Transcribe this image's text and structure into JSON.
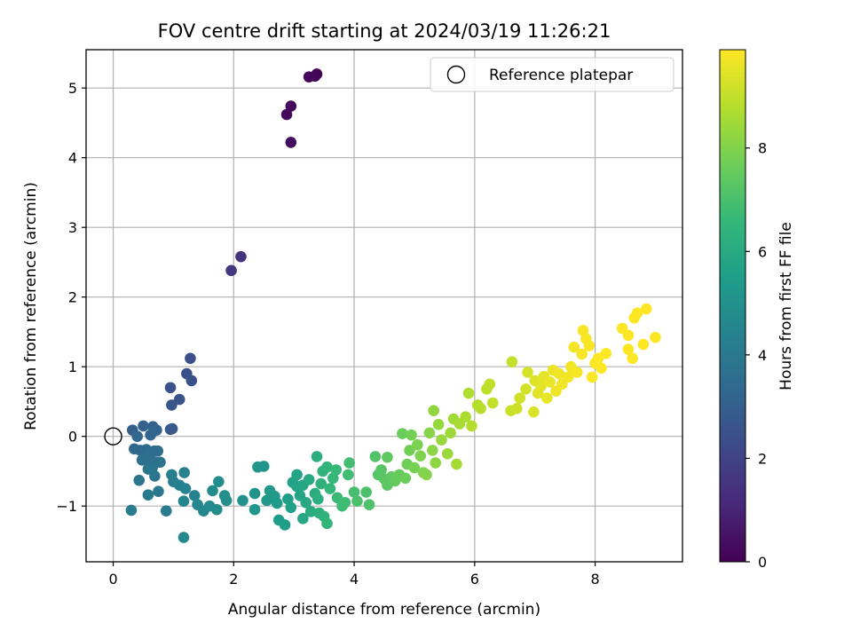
{
  "chart_data": {
    "type": "scatter",
    "title": "FOV centre drift starting at 2024/03/19 11:26:21",
    "xlabel": "Angular distance from reference (arcmin)",
    "ylabel": "Rotation from reference (arcmin)",
    "xlim": [
      -0.45,
      9.45
    ],
    "ylim": [
      -1.8,
      5.55
    ],
    "xticks": [
      0,
      2,
      4,
      6,
      8
    ],
    "yticks": [
      -1,
      0,
      1,
      2,
      3,
      4,
      5
    ],
    "xtick_labels": [
      "0",
      "2",
      "4",
      "6",
      "8"
    ],
    "ytick_labels": [
      "−1",
      "0",
      "1",
      "2",
      "3",
      "4",
      "5"
    ],
    "grid": true,
    "legend": {
      "position": "top-right",
      "entries": [
        "Reference platepar"
      ]
    },
    "reference_point": {
      "x": 0,
      "y": 0
    },
    "colorbar": {
      "label": "Hours from first FF file",
      "range": [
        0,
        9.9
      ],
      "ticks": [
        0,
        2,
        4,
        6,
        8
      ],
      "tick_labels": [
        "0",
        "2",
        "4",
        "6",
        "8"
      ],
      "colormap": "viridis"
    },
    "series": [
      {
        "points": [
          {
            "x": 3.38,
            "y": 5.2,
            "c": 0.1
          },
          {
            "x": 3.35,
            "y": 5.17,
            "c": 0.15
          },
          {
            "x": 3.25,
            "y": 5.16,
            "c": 0.2
          },
          {
            "x": 2.95,
            "y": 4.74,
            "c": 0.25
          },
          {
            "x": 2.88,
            "y": 4.62,
            "c": 0.3
          },
          {
            "x": 2.95,
            "y": 4.22,
            "c": 0.35
          },
          {
            "x": 2.12,
            "y": 2.58,
            "c": 1.45
          },
          {
            "x": 1.96,
            "y": 2.38,
            "c": 1.55
          },
          {
            "x": 1.28,
            "y": 1.12,
            "c": 2.4
          },
          {
            "x": 1.22,
            "y": 0.9,
            "c": 2.45
          },
          {
            "x": 1.3,
            "y": 0.8,
            "c": 2.5
          },
          {
            "x": 0.95,
            "y": 0.7,
            "c": 2.55
          },
          {
            "x": 1.1,
            "y": 0.53,
            "c": 2.6
          },
          {
            "x": 0.97,
            "y": 0.45,
            "c": 2.65
          },
          {
            "x": 0.98,
            "y": 0.11,
            "c": 2.7
          },
          {
            "x": 0.95,
            "y": 0.1,
            "c": 2.75
          },
          {
            "x": 0.32,
            "y": 0.09,
            "c": 3.0
          },
          {
            "x": 0.5,
            "y": 0.15,
            "c": 3.05
          },
          {
            "x": 0.66,
            "y": 0.14,
            "c": 3.1
          },
          {
            "x": 0.72,
            "y": 0.09,
            "c": 3.15
          },
          {
            "x": 0.62,
            "y": 0.02,
            "c": 3.2
          },
          {
            "x": 0.4,
            "y": 0.0,
            "c": 3.25
          },
          {
            "x": 0.35,
            "y": -0.18,
            "c": 3.3
          },
          {
            "x": 0.45,
            "y": -0.2,
            "c": 3.35
          },
          {
            "x": 0.55,
            "y": -0.19,
            "c": 3.4
          },
          {
            "x": 0.68,
            "y": -0.21,
            "c": 3.45
          },
          {
            "x": 0.74,
            "y": -0.21,
            "c": 3.5
          },
          {
            "x": 0.58,
            "y": -0.28,
            "c": 3.55
          },
          {
            "x": 0.48,
            "y": -0.34,
            "c": 3.6
          },
          {
            "x": 0.62,
            "y": -0.35,
            "c": 3.65
          },
          {
            "x": 0.7,
            "y": -0.37,
            "c": 3.7
          },
          {
            "x": 0.78,
            "y": -0.37,
            "c": 3.75
          },
          {
            "x": 0.65,
            "y": -0.45,
            "c": 3.8
          },
          {
            "x": 0.58,
            "y": -0.47,
            "c": 3.85
          },
          {
            "x": 0.69,
            "y": -0.57,
            "c": 3.9
          },
          {
            "x": 0.43,
            "y": -0.63,
            "c": 3.95
          },
          {
            "x": 0.75,
            "y": -0.79,
            "c": 4.0
          },
          {
            "x": 0.58,
            "y": -0.84,
            "c": 4.05
          },
          {
            "x": 0.3,
            "y": -1.06,
            "c": 4.1
          },
          {
            "x": 0.88,
            "y": -1.07,
            "c": 4.15
          },
          {
            "x": 0.97,
            "y": -0.55,
            "c": 4.2
          },
          {
            "x": 1.0,
            "y": -0.65,
            "c": 4.25
          },
          {
            "x": 1.1,
            "y": -0.7,
            "c": 4.3
          },
          {
            "x": 1.18,
            "y": -0.52,
            "c": 4.35
          },
          {
            "x": 1.2,
            "y": -0.75,
            "c": 4.4
          },
          {
            "x": 1.35,
            "y": -0.85,
            "c": 4.45
          },
          {
            "x": 1.17,
            "y": -0.93,
            "c": 4.5
          },
          {
            "x": 1.4,
            "y": -0.98,
            "c": 4.55
          },
          {
            "x": 1.5,
            "y": -1.07,
            "c": 4.6
          },
          {
            "x": 1.17,
            "y": -1.45,
            "c": 4.65
          },
          {
            "x": 1.6,
            "y": -1.0,
            "c": 4.7
          },
          {
            "x": 1.65,
            "y": -0.78,
            "c": 4.75
          },
          {
            "x": 1.75,
            "y": -0.65,
            "c": 4.8
          },
          {
            "x": 1.72,
            "y": -1.05,
            "c": 4.85
          },
          {
            "x": 1.85,
            "y": -0.85,
            "c": 4.9
          },
          {
            "x": 1.88,
            "y": -0.92,
            "c": 4.95
          },
          {
            "x": 2.15,
            "y": -0.92,
            "c": 5.0
          },
          {
            "x": 2.35,
            "y": -0.82,
            "c": 5.05
          },
          {
            "x": 2.4,
            "y": -0.44,
            "c": 5.1
          },
          {
            "x": 2.5,
            "y": -0.43,
            "c": 5.15
          },
          {
            "x": 2.35,
            "y": -1.05,
            "c": 5.2
          },
          {
            "x": 2.55,
            "y": -0.92,
            "c": 5.25
          },
          {
            "x": 2.6,
            "y": -0.78,
            "c": 5.3
          },
          {
            "x": 2.68,
            "y": -0.86,
            "c": 5.35
          },
          {
            "x": 2.72,
            "y": -0.96,
            "c": 5.4
          },
          {
            "x": 2.75,
            "y": -1.2,
            "c": 5.45
          },
          {
            "x": 2.85,
            "y": -1.27,
            "c": 5.5
          },
          {
            "x": 2.9,
            "y": -0.9,
            "c": 5.55
          },
          {
            "x": 2.95,
            "y": -1.02,
            "c": 5.6
          },
          {
            "x": 2.98,
            "y": -0.66,
            "c": 5.65
          },
          {
            "x": 3.05,
            "y": -0.55,
            "c": 5.7
          },
          {
            "x": 3.05,
            "y": -0.72,
            "c": 5.75
          },
          {
            "x": 3.1,
            "y": -0.85,
            "c": 5.8
          },
          {
            "x": 3.15,
            "y": -0.7,
            "c": 5.85
          },
          {
            "x": 3.15,
            "y": -1.18,
            "c": 5.9
          },
          {
            "x": 3.2,
            "y": -0.95,
            "c": 5.95
          },
          {
            "x": 3.25,
            "y": -0.62,
            "c": 6.0
          },
          {
            "x": 3.28,
            "y": -1.08,
            "c": 6.05
          },
          {
            "x": 3.35,
            "y": -0.82,
            "c": 6.1
          },
          {
            "x": 3.38,
            "y": -0.29,
            "c": 6.15
          },
          {
            "x": 3.4,
            "y": -0.9,
            "c": 6.2
          },
          {
            "x": 3.42,
            "y": -1.1,
            "c": 6.25
          },
          {
            "x": 3.45,
            "y": -0.68,
            "c": 6.3
          },
          {
            "x": 3.48,
            "y": -0.5,
            "c": 6.35
          },
          {
            "x": 3.5,
            "y": -1.15,
            "c": 6.4
          },
          {
            "x": 3.55,
            "y": -0.44,
            "c": 6.45
          },
          {
            "x": 3.55,
            "y": -1.25,
            "c": 6.5
          },
          {
            "x": 3.6,
            "y": -0.75,
            "c": 6.55
          },
          {
            "x": 3.65,
            "y": -0.6,
            "c": 6.6
          },
          {
            "x": 3.7,
            "y": -0.48,
            "c": 6.65
          },
          {
            "x": 3.72,
            "y": -0.88,
            "c": 6.7
          },
          {
            "x": 3.8,
            "y": -1.0,
            "c": 6.75
          },
          {
            "x": 3.85,
            "y": -0.95,
            "c": 6.8
          },
          {
            "x": 3.9,
            "y": -0.55,
            "c": 6.85
          },
          {
            "x": 3.92,
            "y": -0.38,
            "c": 6.9
          },
          {
            "x": 4.0,
            "y": -0.8,
            "c": 6.95
          },
          {
            "x": 4.05,
            "y": -0.93,
            "c": 7.0
          },
          {
            "x": 4.2,
            "y": -0.8,
            "c": 7.05
          },
          {
            "x": 4.25,
            "y": -0.98,
            "c": 7.1
          },
          {
            "x": 4.35,
            "y": -0.29,
            "c": 7.15
          },
          {
            "x": 4.4,
            "y": -0.55,
            "c": 7.2
          },
          {
            "x": 4.45,
            "y": -0.48,
            "c": 7.25
          },
          {
            "x": 4.5,
            "y": -0.61,
            "c": 7.3
          },
          {
            "x": 4.55,
            "y": -0.7,
            "c": 7.35
          },
          {
            "x": 4.55,
            "y": -0.3,
            "c": 7.4
          },
          {
            "x": 4.62,
            "y": -0.58,
            "c": 7.45
          },
          {
            "x": 4.68,
            "y": -0.64,
            "c": 7.5
          },
          {
            "x": 4.75,
            "y": -0.55,
            "c": 7.55
          },
          {
            "x": 4.8,
            "y": 0.04,
            "c": 7.6
          },
          {
            "x": 4.85,
            "y": -0.6,
            "c": 7.65
          },
          {
            "x": 4.88,
            "y": -0.4,
            "c": 7.7
          },
          {
            "x": 4.92,
            "y": -0.2,
            "c": 7.75
          },
          {
            "x": 4.95,
            "y": 0.02,
            "c": 7.8
          },
          {
            "x": 5.0,
            "y": -0.45,
            "c": 7.85
          },
          {
            "x": 5.05,
            "y": -0.12,
            "c": 7.9
          },
          {
            "x": 5.1,
            "y": -0.28,
            "c": 7.95
          },
          {
            "x": 5.15,
            "y": -0.52,
            "c": 8.0
          },
          {
            "x": 5.2,
            "y": -0.55,
            "c": 8.05
          },
          {
            "x": 5.25,
            "y": 0.05,
            "c": 8.1
          },
          {
            "x": 5.3,
            "y": -0.2,
            "c": 8.15
          },
          {
            "x": 5.35,
            "y": -0.38,
            "c": 8.2
          },
          {
            "x": 5.32,
            "y": 0.37,
            "c": 8.25
          },
          {
            "x": 5.4,
            "y": 0.17,
            "c": 8.3
          },
          {
            "x": 5.45,
            "y": -0.05,
            "c": 8.35
          },
          {
            "x": 5.55,
            "y": -0.25,
            "c": 8.4
          },
          {
            "x": 5.6,
            "y": 0.05,
            "c": 8.45
          },
          {
            "x": 5.65,
            "y": 0.25,
            "c": 8.5
          },
          {
            "x": 5.7,
            "y": -0.4,
            "c": 8.55
          },
          {
            "x": 5.75,
            "y": 0.18,
            "c": 8.6
          },
          {
            "x": 5.85,
            "y": 0.28,
            "c": 8.65
          },
          {
            "x": 5.9,
            "y": 0.62,
            "c": 8.7
          },
          {
            "x": 5.95,
            "y": 0.15,
            "c": 8.75
          },
          {
            "x": 6.05,
            "y": 0.45,
            "c": 8.8
          },
          {
            "x": 6.1,
            "y": 0.4,
            "c": 8.85
          },
          {
            "x": 6.2,
            "y": 0.68,
            "c": 8.9
          },
          {
            "x": 6.25,
            "y": 0.75,
            "c": 8.95
          },
          {
            "x": 6.3,
            "y": 0.48,
            "c": 9.0
          },
          {
            "x": 6.62,
            "y": 1.07,
            "c": 9.05
          },
          {
            "x": 6.6,
            "y": 0.37,
            "c": 9.1
          },
          {
            "x": 6.7,
            "y": 0.4,
            "c": 9.15
          },
          {
            "x": 6.75,
            "y": 0.55,
            "c": 9.2
          },
          {
            "x": 6.85,
            "y": 0.68,
            "c": 9.25
          },
          {
            "x": 6.88,
            "y": 0.92,
            "c": 9.3
          },
          {
            "x": 6.98,
            "y": 0.35,
            "c": 9.35
          },
          {
            "x": 7.0,
            "y": 0.8,
            "c": 9.4
          },
          {
            "x": 7.05,
            "y": 0.62,
            "c": 9.45
          },
          {
            "x": 7.1,
            "y": 0.72,
            "c": 9.5
          },
          {
            "x": 7.15,
            "y": 0.86,
            "c": 9.55
          },
          {
            "x": 7.2,
            "y": 0.55,
            "c": 9.6
          },
          {
            "x": 7.25,
            "y": 0.78,
            "c": 9.62
          },
          {
            "x": 7.3,
            "y": 0.95,
            "c": 9.64
          },
          {
            "x": 7.35,
            "y": 0.65,
            "c": 9.66
          },
          {
            "x": 7.4,
            "y": 0.9,
            "c": 9.68
          },
          {
            "x": 7.45,
            "y": 0.75,
            "c": 9.7
          },
          {
            "x": 7.55,
            "y": 0.85,
            "c": 9.72
          },
          {
            "x": 7.6,
            "y": 1.0,
            "c": 9.74
          },
          {
            "x": 7.65,
            "y": 1.28,
            "c": 9.76
          },
          {
            "x": 7.7,
            "y": 0.92,
            "c": 9.78
          },
          {
            "x": 7.78,
            "y": 1.18,
            "c": 9.8
          },
          {
            "x": 7.8,
            "y": 1.52,
            "c": 9.82
          },
          {
            "x": 7.85,
            "y": 1.4,
            "c": 9.83
          },
          {
            "x": 7.9,
            "y": 1.3,
            "c": 9.84
          },
          {
            "x": 7.95,
            "y": 0.85,
            "c": 9.85
          },
          {
            "x": 8.0,
            "y": 1.05,
            "c": 9.86
          },
          {
            "x": 8.05,
            "y": 1.12,
            "c": 9.87
          },
          {
            "x": 8.1,
            "y": 0.98,
            "c": 9.88
          },
          {
            "x": 8.18,
            "y": 1.19,
            "c": 9.89
          },
          {
            "x": 8.45,
            "y": 1.55,
            "c": 9.9
          },
          {
            "x": 8.55,
            "y": 1.45,
            "c": 9.9
          },
          {
            "x": 8.55,
            "y": 1.25,
            "c": 9.9
          },
          {
            "x": 8.62,
            "y": 1.12,
            "c": 9.9
          },
          {
            "x": 8.65,
            "y": 1.7,
            "c": 9.9
          },
          {
            "x": 8.7,
            "y": 1.77,
            "c": 9.9
          },
          {
            "x": 8.8,
            "y": 1.32,
            "c": 9.9
          },
          {
            "x": 8.85,
            "y": 1.83,
            "c": 9.9
          },
          {
            "x": 9.0,
            "y": 1.42,
            "c": 9.9
          }
        ]
      }
    ]
  }
}
